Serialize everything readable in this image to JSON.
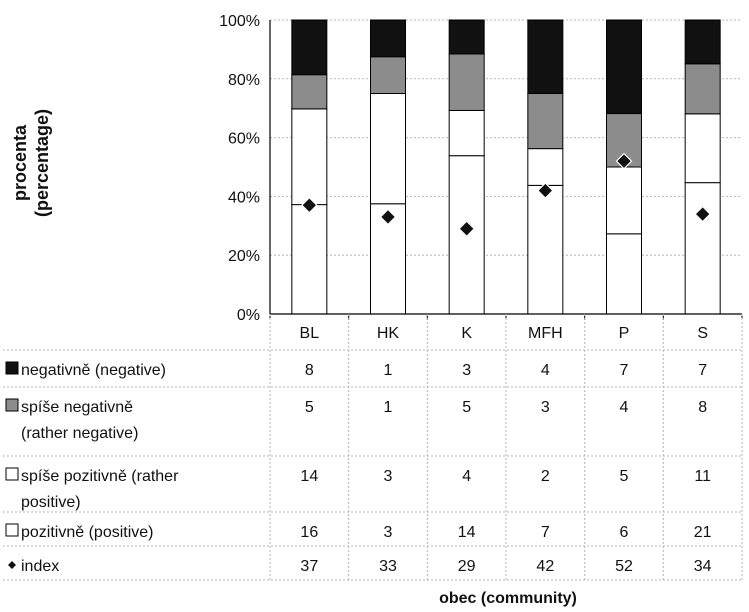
{
  "chart_data": {
    "type": "bar",
    "stacked": true,
    "percent_stacked": true,
    "categories": [
      "BL",
      "HK",
      "K",
      "MFH",
      "P",
      "S"
    ],
    "series": [
      {
        "name": "pozitivně (positive)",
        "values": [
          16,
          3,
          14,
          7,
          6,
          21
        ],
        "color": "#ffffff",
        "marker": "white-square"
      },
      {
        "name": "spíše pozitivně (rather positive)",
        "values": [
          14,
          3,
          4,
          2,
          5,
          11
        ],
        "color": "#ffffff",
        "marker": "white-square"
      },
      {
        "name": "spíše negativně (rather negative)",
        "values": [
          5,
          1,
          5,
          3,
          4,
          8
        ],
        "color": "#8a8a8a",
        "marker": "grey-square"
      },
      {
        "name": "negativně (negative)",
        "values": [
          8,
          1,
          3,
          4,
          7,
          7
        ],
        "color": "#111111",
        "marker": "black-square"
      }
    ],
    "index": {
      "name": "index",
      "values": [
        37,
        33,
        29,
        42,
        52,
        34
      ],
      "marker": "diamond"
    },
    "table_rows": [
      {
        "label_lines": [
          "negativně (negative)"
        ],
        "series": 3,
        "marker": "black-square"
      },
      {
        "label_lines": [
          "spíše negativně",
          "(rather negative)"
        ],
        "series": 2,
        "marker": "grey-square"
      },
      {
        "label_lines": [
          "spíše pozitivně (rather",
          "positive)"
        ],
        "series": 1,
        "marker": "white-square"
      },
      {
        "label_lines": [
          "pozitivně (positive)"
        ],
        "series": 0,
        "marker": "white-square"
      },
      {
        "label_lines": [
          "index"
        ],
        "series": "index",
        "marker": "diamond"
      }
    ],
    "ylabel": [
      "procenta",
      "(percentage)"
    ],
    "xlabel": "obec (community)",
    "yticks": [
      "0%",
      "20%",
      "40%",
      "60%",
      "80%",
      "100%"
    ],
    "ylim": [
      0,
      100
    ],
    "grid": true,
    "legend": "data-table"
  }
}
